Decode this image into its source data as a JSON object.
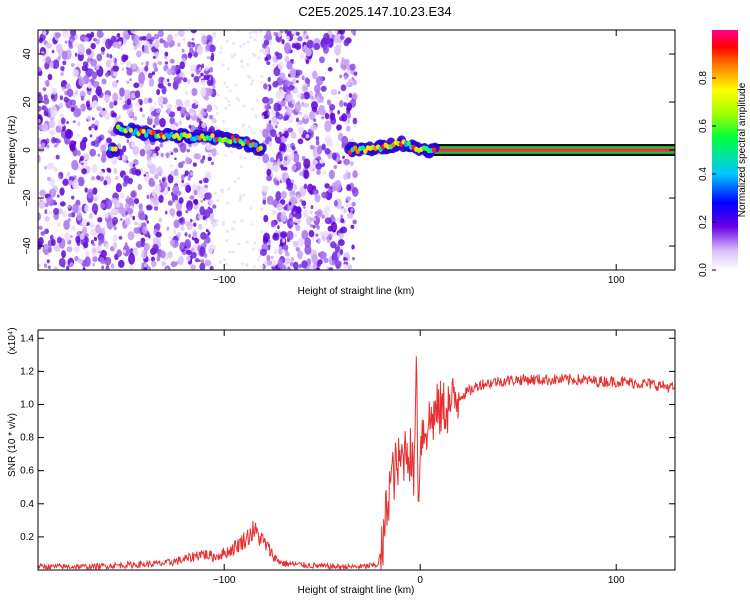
{
  "title": "C2E5.2025.147.10.23.E34",
  "chart_data": [
    {
      "type": "heatmap",
      "xlabel": "Height of straight line (km)",
      "ylabel": "Frequency (Hz)",
      "xlim": [
        -195,
        130
      ],
      "ylim": [
        -50,
        50
      ],
      "x_ticks": [
        -100,
        100
      ],
      "y_ticks": [
        -40,
        -20,
        0,
        20,
        40
      ],
      "colorbar": {
        "label": "Normalized spectral amplitude",
        "range": [
          0,
          1
        ],
        "ticks": [
          "0.0",
          "0.2",
          "0.4",
          "0.6",
          "0.8"
        ]
      },
      "ridge": {
        "x": [
          -155,
          -140,
          -125,
          -110,
          -100,
          -90,
          -80,
          -37,
          -30,
          -20,
          -10,
          -3,
          5,
          130
        ],
        "y": [
          9,
          7,
          6,
          5,
          5,
          3,
          0,
          0,
          0,
          1,
          3,
          1,
          0,
          0
        ]
      },
      "noise_bands": [
        [
          -195,
          -105
        ],
        [
          -80,
          -33
        ]
      ]
    },
    {
      "type": "line",
      "xlabel": "Height of straight line (km)",
      "ylabel": "SNR (10 * v/v)",
      "y_multiplier": "(x10⁴)",
      "xlim": [
        -195,
        130
      ],
      "ylim": [
        0,
        1.45
      ],
      "x_ticks": [
        -100,
        0,
        100
      ],
      "y_ticks": [
        0.2,
        0.4,
        0.6,
        0.8,
        1.0,
        1.2,
        1.4
      ],
      "series": [
        {
          "color": "#e83030",
          "x": [
            -195,
            -170,
            -150,
            -130,
            -118,
            -112,
            -105,
            -98,
            -92,
            -88,
            -85,
            -82,
            -78,
            -74,
            -70,
            -60,
            -45,
            -30,
            -22,
            -19,
            -17,
            -15,
            -12,
            -10,
            -7,
            -5,
            -3,
            -2,
            -1,
            0,
            2,
            5,
            8,
            12,
            16,
            20,
            25,
            30,
            40,
            50,
            60,
            70,
            80,
            90,
            100,
            110,
            120,
            130
          ],
          "y": [
            0.02,
            0.02,
            0.03,
            0.04,
            0.07,
            0.1,
            0.08,
            0.11,
            0.16,
            0.2,
            0.24,
            0.2,
            0.14,
            0.07,
            0.04,
            0.03,
            0.02,
            0.02,
            0.03,
            0.12,
            0.4,
            0.55,
            0.62,
            0.65,
            0.75,
            0.7,
            0.55,
            1.45,
            0.35,
            0.8,
            0.85,
            0.9,
            0.95,
            0.98,
            1.0,
            1.05,
            1.08,
            1.12,
            1.14,
            1.15,
            1.15,
            1.15,
            1.15,
            1.14,
            1.14,
            1.13,
            1.12,
            1.1
          ]
        }
      ]
    }
  ]
}
